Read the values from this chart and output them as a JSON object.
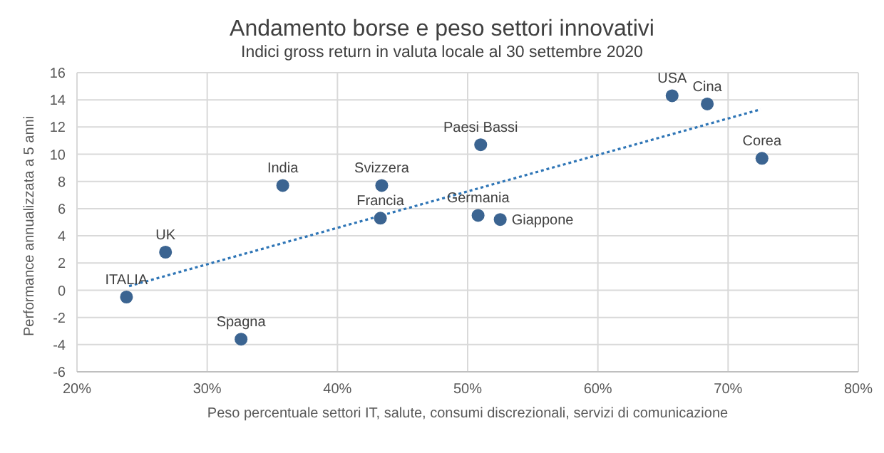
{
  "chart_data": {
    "type": "scatter",
    "title": "Andamento borse e peso settori innovativi",
    "subtitle": "Indici gross return in valuta locale al 30 settembre 2020",
    "xlabel": "Peso percentuale settori IT, salute, consumi discrezionali, servizi di comunicazione",
    "ylabel": "Performance annualizzata a 5 anni",
    "x": [
      23.8,
      26.8,
      32.6,
      35.8,
      43.4,
      43.3,
      51.0,
      50.8,
      52.5,
      65.7,
      68.4,
      72.6
    ],
    "series": [
      {
        "color": "#3b6491",
        "values": [
          -0.5,
          2.8,
          -3.6,
          7.7,
          7.7,
          5.3,
          10.7,
          5.5,
          5.2,
          14.3,
          13.7,
          9.7
        ],
        "marker": "circle"
      },
      {
        "type": "line",
        "color": "#2e75b6",
        "x": [
          24.0,
          72.5
        ],
        "values": [
          0.3,
          13.3
        ],
        "line_style": "dotted",
        "marker": "none"
      }
    ],
    "annotations": [
      {
        "text": "ITALIA",
        "x": 23.8,
        "y": -0.5
      },
      {
        "text": "UK",
        "x": 26.8,
        "y": 2.8
      },
      {
        "text": "Spagna",
        "x": 32.6,
        "y": -3.6
      },
      {
        "text": "India",
        "x": 35.8,
        "y": 7.7
      },
      {
        "text": "Svizzera",
        "x": 43.4,
        "y": 7.7
      },
      {
        "text": "Francia",
        "x": 43.3,
        "y": 5.3
      },
      {
        "text": "Paesi Bassi",
        "x": 51.0,
        "y": 10.7
      },
      {
        "text": "Germania",
        "x": 50.8,
        "y": 5.5
      },
      {
        "text": "Giappone",
        "x": 52.5,
        "y": 5.2
      },
      {
        "text": "USA",
        "x": 65.7,
        "y": 14.3
      },
      {
        "text": "Cina",
        "x": 68.4,
        "y": 13.7
      },
      {
        "text": "Corea",
        "x": 72.6,
        "y": 9.7
      }
    ],
    "xlim": [
      20,
      80
    ],
    "xticks": [
      {
        "value": 20,
        "label": "20%"
      },
      {
        "value": 30,
        "label": "30%"
      },
      {
        "value": 40,
        "label": "40%"
      },
      {
        "value": 50,
        "label": "50%"
      },
      {
        "value": 60,
        "label": "60%"
      },
      {
        "value": 70,
        "label": "70%"
      },
      {
        "value": 80,
        "label": "80%"
      }
    ],
    "ylim": [
      -6,
      16
    ],
    "yticks": [
      -6,
      -4,
      -2,
      0,
      2,
      4,
      6,
      8,
      10,
      12,
      14,
      16
    ],
    "grid": true,
    "legend": false
  }
}
